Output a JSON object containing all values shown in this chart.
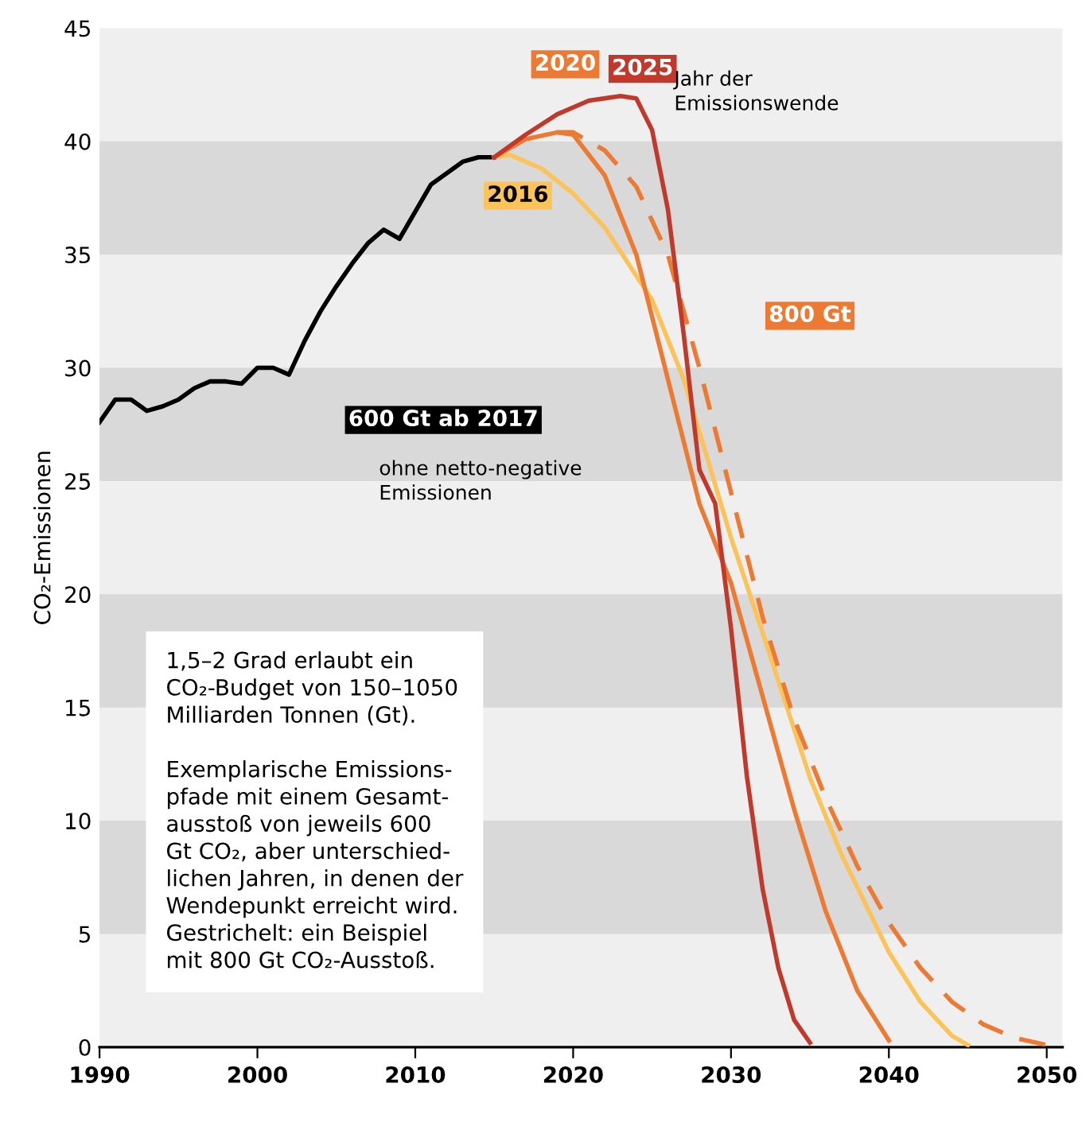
{
  "chart_data": {
    "type": "line",
    "ylabel": "CO₂-Emissionen",
    "xlim": [
      1990,
      2051
    ],
    "ylim": [
      0,
      45
    ],
    "xticks": [
      1990,
      2000,
      2010,
      2020,
      2030,
      2040,
      2050
    ],
    "yticks": [
      0,
      5,
      10,
      15,
      20,
      25,
      30,
      35,
      40,
      45
    ],
    "grid": false,
    "legend": false,
    "marker": "none",
    "bands": [
      {
        "axis": "y",
        "from": 5,
        "to": 10,
        "color": "#d9d9d9"
      },
      {
        "axis": "y",
        "from": 15,
        "to": 20,
        "color": "#d9d9d9"
      },
      {
        "axis": "y",
        "from": 25,
        "to": 30,
        "color": "#d9d9d9"
      },
      {
        "axis": "y",
        "from": 35,
        "to": 40,
        "color": "#d9d9d9"
      }
    ],
    "series": [
      {
        "color": "#000000",
        "line_style": "solid",
        "x": [
          1990,
          1991,
          1992,
          1993,
          1994,
          1995,
          1996,
          1997,
          1998,
          1999,
          2000,
          2001,
          2002,
          2003,
          2004,
          2005,
          2006,
          2007,
          2008,
          2009,
          2010,
          2011,
          2012,
          2013,
          2014,
          2015
        ],
        "values": [
          27.6,
          28.6,
          28.6,
          28.1,
          28.3,
          28.6,
          29.1,
          29.4,
          29.4,
          29.3,
          30.0,
          30.0,
          29.7,
          31.2,
          32.5,
          33.6,
          34.6,
          35.5,
          36.1,
          35.7,
          36.9,
          38.1,
          38.6,
          39.1,
          39.3,
          39.3
        ]
      },
      {
        "color": "#fbc35a",
        "line_style": "solid",
        "x": [
          2015,
          2016,
          2018,
          2020,
          2022,
          2025,
          2027,
          2030,
          2032,
          2035,
          2037,
          2040,
          2042,
          2044,
          2045
        ],
        "values": [
          39.3,
          39.4,
          38.8,
          37.7,
          36.2,
          33.0,
          29.5,
          22.5,
          18.3,
          11.9,
          8.5,
          4.2,
          2.0,
          0.5,
          0.1
        ]
      },
      {
        "color": "#ec7a33",
        "line_style": "dashed",
        "x": [
          2019,
          2020,
          2022,
          2024,
          2026,
          2028,
          2030,
          2032,
          2034,
          2036,
          2038,
          2040,
          2042,
          2044,
          2046,
          2048,
          2050
        ],
        "values": [
          40.4,
          40.4,
          39.6,
          38.0,
          35.0,
          30.0,
          24.5,
          19.0,
          14.5,
          11.0,
          8.0,
          5.5,
          3.5,
          2.0,
          1.0,
          0.4,
          0.1
        ]
      },
      {
        "color": "#ec7a33",
        "line_style": "solid",
        "x": [
          2015,
          2017,
          2019,
          2020,
          2022,
          2024,
          2026,
          2028,
          2030,
          2032,
          2034,
          2036,
          2038,
          2040
        ],
        "values": [
          39.3,
          40.1,
          40.4,
          40.3,
          38.5,
          35.0,
          29.5,
          24.0,
          20.5,
          15.5,
          10.5,
          6.0,
          2.5,
          0.3
        ]
      },
      {
        "color": "#c0392b",
        "line_style": "solid",
        "x": [
          2015,
          2017,
          2019,
          2021,
          2023,
          2024,
          2025,
          2026,
          2027,
          2028,
          2029,
          2030,
          2031,
          2032,
          2033,
          2034,
          2035
        ],
        "values": [
          39.3,
          40.3,
          41.2,
          41.8,
          42.0,
          41.9,
          40.5,
          37.0,
          31.5,
          25.5,
          24.0,
          18.5,
          12.0,
          7.0,
          3.5,
          1.2,
          0.2
        ]
      }
    ],
    "annotations": [
      "2016",
      "2020",
      "2025",
      "Jahr der\nEmissionswende",
      "800 Gt",
      "600 Gt ab 2017",
      "ohne netto-negative\nEmissionen",
      "1,5–2 Grad erlaubt ein\nCO₂-Budget von 150–1050\nMilliarden Tonnen (Gt).\n\nExemplarische Emissions-\npfade mit einem Gesamt-\nausstoß von jeweils 600\nGt CO₂, aber unterschied-\nlichen Jahren, in denen der\nWendepunkt erreicht wird.\nGestrichelt: ein Beispiel\nmit 800 Gt CO₂-Ausstoß."
    ]
  }
}
